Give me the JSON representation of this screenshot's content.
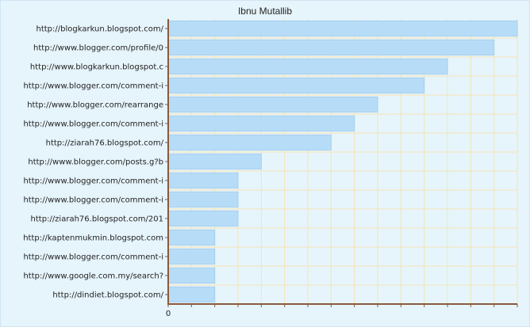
{
  "chart_data": {
    "type": "bar",
    "orientation": "horizontal",
    "title": "Ibnu Mutallib",
    "xlabel": "",
    "ylabel": "",
    "categories": [
      "http://blogkarkun.blogspot.com/",
      "http://www.blogger.com/profile/0",
      "http://www.blogkarkun.blogspot.c",
      "http://www.blogger.com/comment-i",
      "http://www.blogger.com/rearrange",
      "http://www.blogger.com/comment-i",
      "http://ziarah76.blogspot.com/",
      "http://www.blogger.com/posts.g?b",
      "http://www.blogger.com/comment-i",
      "http://www.blogger.com/comment-i",
      "http://ziarah76.blogspot.com/201",
      "http://kaptenmukmin.blogspot.com",
      "http://www.blogger.com/comment-i",
      "http://www.google.com.my/search?",
      "http://dindiet.blogspot.com/"
    ],
    "values": [
      15,
      14,
      12,
      11,
      9,
      8,
      7,
      4,
      3,
      3,
      3,
      2,
      2,
      2,
      2
    ],
    "xlim": [
      0,
      15
    ],
    "x_tick_labels": [
      "0"
    ],
    "grid": true,
    "colors": {
      "bar_fill": "#b7dcf7",
      "bar_stroke": "#a6cfee",
      "plot_background": "#e6f5fc",
      "grid_line": "#f5e3b4",
      "axis_line": "#8a5a3c",
      "frame": "#cfe6f3"
    }
  }
}
